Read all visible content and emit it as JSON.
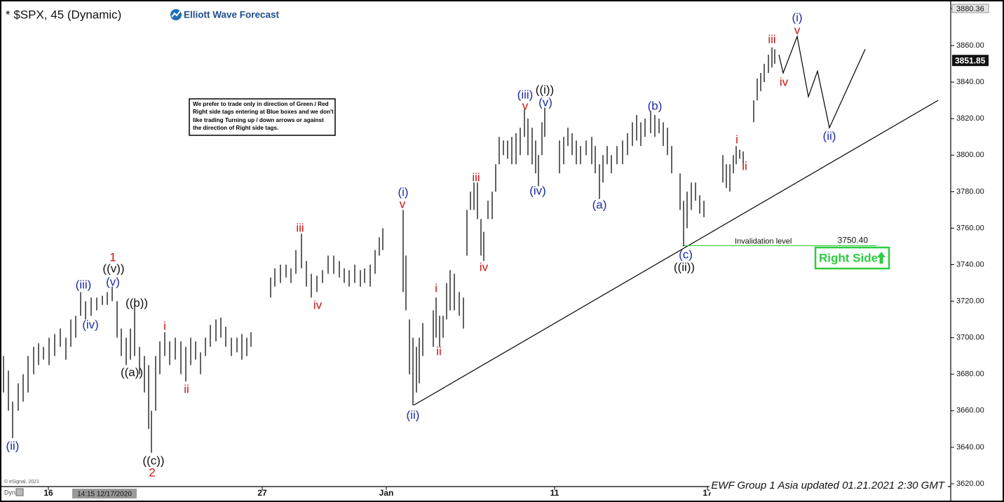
{
  "header": {
    "symbol": "* $SPX, 45 (Dynamic)",
    "brand": "Elliott Wave Forecast"
  },
  "notice": [
    "We prefer to trade only in direction of Green / Red",
    "Right side tags entering at Blue boxes and we don't",
    "like trading Turning up / down arrows or against",
    "the direction of Right side tags."
  ],
  "badge": "Right Side",
  "footer": "EWF Group 1 Asia updated 01.21.2021 2:30 GMT",
  "copyright": "© eSignal, 2021",
  "mode": "Dyn",
  "cursor_label": "14:15 12/17/2020",
  "chart_data": {
    "type": "ohlc",
    "xlim": [
      0,
      271
    ],
    "ylim": [
      3620,
      3880.36
    ],
    "xticks": [
      {
        "value": 13.8,
        "label": "16"
      },
      {
        "value": 74.8,
        "label": "27"
      },
      {
        "value": 110.2,
        "label": "Jan"
      },
      {
        "value": 158.2,
        "label": "11"
      },
      {
        "value": 201.8,
        "label": "17"
      }
    ],
    "yticks": [
      {
        "value": 3620,
        "label": "3620.00"
      },
      {
        "value": 3640,
        "label": "3640.00"
      },
      {
        "value": 3660,
        "label": "3660.00"
      },
      {
        "value": 3680,
        "label": "3680.00"
      },
      {
        "value": 3700,
        "label": "3700.00"
      },
      {
        "value": 3720,
        "label": "3720.00"
      },
      {
        "value": 3740,
        "label": "3740.00"
      },
      {
        "value": 3760,
        "label": "3760.00"
      },
      {
        "value": 3780,
        "label": "3780.00"
      },
      {
        "value": 3800,
        "label": "3800.00"
      },
      {
        "value": 3820,
        "label": "3820.00"
      },
      {
        "value": 3840,
        "label": "3840.00"
      },
      {
        "value": 3860,
        "label": "3860.00"
      },
      3880.36
    ],
    "last_price": 3851.85,
    "bars": {
      "color": "#1e1e1e",
      "x": [
        1,
        2.4,
        3.6,
        5.2,
        6.6,
        8,
        9.6,
        11,
        12.4,
        14,
        15.6,
        17.2,
        18.8,
        20.2,
        21.6,
        23,
        24.4,
        26,
        27.6,
        29.2,
        30.6,
        32,
        33.4,
        34.6,
        36,
        37.2,
        38.4,
        39.8,
        41.2,
        42.4,
        43.2,
        44.4,
        45.6,
        47,
        48.4,
        50,
        51.6,
        53,
        54.4,
        55.8,
        57.2,
        58.6,
        60,
        61.6,
        63,
        64.4,
        66,
        67.6,
        69,
        70.4,
        71.6,
        77.2,
        78.4,
        80,
        81.6,
        83,
        84.4,
        86,
        87.4,
        88.8,
        90.4,
        92,
        93.6,
        95.2,
        96.8,
        98.2,
        99.6,
        101.2,
        102.8,
        104,
        105.6,
        107,
        108.2,
        109.2,
        115,
        115.8,
        116.8,
        117.8,
        118.8,
        119.6,
        120.6,
        123.6,
        124.4,
        125.4,
        126.4,
        127.4,
        128.4,
        129.6,
        131,
        132.2,
        133.2,
        134.2,
        135.2,
        136.2,
        137.2,
        138,
        139.2,
        140.4,
        141.4,
        142.4,
        143.6,
        144.8,
        146,
        147.2,
        148.4,
        149.6,
        150.6,
        151.8,
        152.8,
        153.6,
        154.6,
        155.4,
        159.6,
        160.8,
        162,
        163.2,
        164.4,
        165.6,
        167.2,
        168.8,
        169.8,
        171,
        172,
        173.2,
        174.4,
        176,
        177.6,
        179,
        180.4,
        181.6,
        182.8,
        184,
        185.6,
        186.8,
        188,
        189.2,
        190.4,
        191.6,
        194,
        195,
        196,
        197.2,
        198.4,
        199.6,
        200.8,
        206.2,
        207.2,
        208.2,
        209.2,
        210,
        211,
        212,
        215,
        216,
        217,
        218,
        219.2,
        220.2,
        221
      ],
      "low": [
        3670,
        3660,
        3645,
        3660,
        3665,
        3670,
        3680,
        3685,
        3688,
        3685,
        3690,
        3695,
        3688,
        3695,
        3700,
        3712,
        3710,
        3712,
        3715,
        3718,
        3718,
        3720,
        3700,
        3690,
        3685,
        3688,
        3690,
        3680,
        3670,
        3650,
        3637,
        3660,
        3680,
        3690,
        3685,
        3688,
        3680,
        3676,
        3685,
        3688,
        3680,
        3690,
        3695,
        3698,
        3700,
        3695,
        3690,
        3692,
        3688,
        3690,
        3695,
        3722,
        3728,
        3730,
        3733,
        3730,
        3735,
        3738,
        3728,
        3722,
        3725,
        3730,
        3735,
        3735,
        3733,
        3730,
        3728,
        3730,
        3728,
        3730,
        3728,
        3735,
        3745,
        3748,
        3725,
        3715,
        3680,
        3663,
        3670,
        3675,
        3690,
        3695,
        3700,
        3695,
        3700,
        3710,
        3715,
        3715,
        3712,
        3705,
        3745,
        3770,
        3770,
        3765,
        3745,
        3742,
        3765,
        3765,
        3780,
        3795,
        3800,
        3798,
        3795,
        3795,
        3800,
        3810,
        3800,
        3795,
        3790,
        3783,
        3800,
        3810,
        3790,
        3795,
        3805,
        3800,
        3795,
        3795,
        3800,
        3795,
        3790,
        3776,
        3785,
        3795,
        3790,
        3795,
        3795,
        3800,
        3805,
        3808,
        3805,
        3810,
        3812,
        3810,
        3812,
        3805,
        3800,
        3790,
        3770,
        3750,
        3760,
        3770,
        3775,
        3768,
        3766,
        3785,
        3782,
        3780,
        3790,
        3795,
        3798,
        3795,
        3818,
        3830,
        3835,
        3840,
        3845,
        3848,
        3850
      ],
      "high": [
        3690,
        3682,
        3665,
        3675,
        3680,
        3690,
        3695,
        3697,
        3695,
        3700,
        3702,
        3705,
        3700,
        3710,
        3712,
        3725,
        3720,
        3722,
        3722,
        3723,
        3725,
        3728,
        3720,
        3705,
        3700,
        3705,
        3718,
        3695,
        3690,
        3685,
        3660,
        3690,
        3698,
        3703,
        3698,
        3700,
        3698,
        3695,
        3700,
        3698,
        3692,
        3700,
        3707,
        3710,
        3711,
        3706,
        3700,
        3700,
        3702,
        3700,
        3703,
        3733,
        3738,
        3740,
        3740,
        3738,
        3748,
        3757,
        3742,
        3735,
        3734,
        3737,
        3745,
        3745,
        3742,
        3738,
        3737,
        3740,
        3737,
        3738,
        3740,
        3748,
        3755,
        3760,
        3770,
        3745,
        3710,
        3700,
        3695,
        3700,
        3708,
        3715,
        3722,
        3712,
        3712,
        3730,
        3737,
        3735,
        3725,
        3722,
        3770,
        3780,
        3785,
        3785,
        3765,
        3758,
        3775,
        3780,
        3795,
        3810,
        3808,
        3808,
        3810,
        3812,
        3815,
        3825,
        3820,
        3815,
        3808,
        3800,
        3818,
        3826,
        3808,
        3810,
        3815,
        3812,
        3808,
        3805,
        3808,
        3810,
        3805,
        3795,
        3800,
        3805,
        3800,
        3805,
        3808,
        3812,
        3818,
        3822,
        3818,
        3820,
        3824,
        3822,
        3820,
        3818,
        3815,
        3805,
        3790,
        3775,
        3780,
        3785,
        3785,
        3778,
        3775,
        3800,
        3795,
        3795,
        3800,
        3805,
        3803,
        3802,
        3830,
        3842,
        3845,
        3850,
        3855,
        3859,
        3858
      ]
    },
    "trendline": {
      "x": [
        118,
        267.6
      ],
      "values": [
        3663,
        3830
      ],
      "color": "#000000"
    },
    "projection": {
      "x": [
        222.2,
        223.4,
        227.4,
        230.6,
        233.2,
        236.6,
        246.8
      ],
      "values": [
        3855,
        3845,
        3865,
        3832,
        3846,
        3815,
        3858
      ],
      "color": "#000000"
    },
    "invalidation": {
      "label": "Invalidation level",
      "x": [
        195,
        250
      ],
      "value": 3750.4,
      "value_label": "3750.40",
      "color": "#2ecc40"
    },
    "annotations": [
      {
        "text": "(ii)",
        "x": 3.6,
        "y": 3640.4,
        "color": "#1c2aa8"
      },
      {
        "text": "(iii)",
        "x": 23.8,
        "y": 3728.7,
        "color": "#1c2aa8"
      },
      {
        "text": "(iv)",
        "x": 25.8,
        "y": 3706.8,
        "color": "#1c2aa8"
      },
      {
        "text": "(v)",
        "x": 32.2,
        "y": 3730.2,
        "color": "#1c2aa8"
      },
      {
        "text": "((v))",
        "x": 32.4,
        "y": 3737.5,
        "color": "#111111"
      },
      {
        "text": "1",
        "x": 32.2,
        "y": 3743.7,
        "color": "#cc1111"
      },
      {
        "text": "((b))",
        "x": 39,
        "y": 3718.7,
        "color": "#111111"
      },
      {
        "text": "((a))",
        "x": 37.6,
        "y": 3680.7,
        "color": "#111111"
      },
      {
        "text": "((c))",
        "x": 43.8,
        "y": 3632.3,
        "color": "#111111"
      },
      {
        "text": "2",
        "x": 43.4,
        "y": 3625.8,
        "color": "#cc1111"
      },
      {
        "text": "i",
        "x": 47,
        "y": 3706,
        "color": "#cc1111"
      },
      {
        "text": "ii",
        "x": 53.2,
        "y": 3671.5,
        "color": "#cc1111"
      },
      {
        "text": "iii",
        "x": 85.6,
        "y": 3759.8,
        "color": "#cc1111"
      },
      {
        "text": "iv",
        "x": 90.6,
        "y": 3717.5,
        "color": "#cc1111"
      },
      {
        "text": "(i)",
        "x": 115,
        "y": 3779.4,
        "color": "#1c2aa8"
      },
      {
        "text": "v",
        "x": 114.8,
        "y": 3772.8,
        "color": "#cc1111"
      },
      {
        "text": "(ii)",
        "x": 117.8,
        "y": 3657.2,
        "color": "#1c2aa8"
      },
      {
        "text": "i",
        "x": 124.4,
        "y": 3726.8,
        "color": "#cc1111"
      },
      {
        "text": "ii",
        "x": 125.2,
        "y": 3692.2,
        "color": "#cc1111"
      },
      {
        "text": "iii",
        "x": 135.8,
        "y": 3787.4,
        "color": "#cc1111"
      },
      {
        "text": "iv",
        "x": 138,
        "y": 3738.3,
        "color": "#cc1111"
      },
      {
        "text": "(iii)",
        "x": 149.8,
        "y": 3832.7,
        "color": "#1c2aa8"
      },
      {
        "text": "v",
        "x": 149.8,
        "y": 3826.6,
        "color": "#cc1111"
      },
      {
        "text": "((i))",
        "x": 155.4,
        "y": 3835.4,
        "color": "#111111"
      },
      {
        "text": "(v)",
        "x": 155.6,
        "y": 3828.5,
        "color": "#1c2aa8"
      },
      {
        "text": "(iv)",
        "x": 153.4,
        "y": 3780.1,
        "color": "#1c2aa8"
      },
      {
        "text": "(a)",
        "x": 171,
        "y": 3772.5,
        "color": "#1c2aa8"
      },
      {
        "text": "(b)",
        "x": 186.8,
        "y": 3826.6,
        "color": "#1c2aa8"
      },
      {
        "text": "(c)",
        "x": 195.6,
        "y": 3745.2,
        "color": "#1c2aa8"
      },
      {
        "text": "((ii))",
        "x": 195.2,
        "y": 3738.3,
        "color": "#111111"
      },
      {
        "text": "i",
        "x": 210.2,
        "y": 3808.2,
        "color": "#cc1111"
      },
      {
        "text": "ii",
        "x": 212.4,
        "y": 3793.6,
        "color": "#cc1111"
      },
      {
        "text": "iii",
        "x": 220.2,
        "y": 3863.1,
        "color": "#cc1111"
      },
      {
        "text": "iv",
        "x": 223.6,
        "y": 3839.7,
        "color": "#cc1111"
      },
      {
        "text": "v",
        "x": 227.4,
        "y": 3868.1,
        "color": "#cc1111"
      },
      {
        "text": "(i)",
        "x": 227.4,
        "y": 3875,
        "color": "#1c2aa8"
      },
      {
        "text": "(ii)",
        "x": 236.6,
        "y": 3810.1,
        "color": "#1c2aa8"
      }
    ]
  }
}
